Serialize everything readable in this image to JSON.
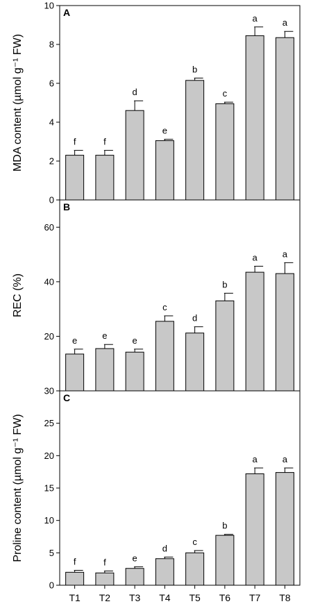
{
  "chart_data": [
    {
      "type": "bar",
      "panel_label": "A",
      "ylabel": "MDA content (µmol g⁻¹ FW)",
      "ylim": [
        0,
        10
      ],
      "yticks": [
        0,
        2,
        4,
        6,
        8,
        10
      ],
      "categories": [
        "T1",
        "T2",
        "T3",
        "T4",
        "T5",
        "T6",
        "T7",
        "T8"
      ],
      "values": [
        2.3,
        2.3,
        4.6,
        3.05,
        6.15,
        4.95,
        8.45,
        8.35
      ],
      "errors": [
        0.25,
        0.25,
        0.5,
        0.07,
        0.12,
        0.08,
        0.45,
        0.32
      ],
      "significance": [
        "f",
        "f",
        "d",
        "e",
        "b",
        "c",
        "a",
        "a"
      ],
      "bar_color": "#c8c8c8"
    },
    {
      "type": "bar",
      "panel_label": "B",
      "ylabel": "REC (%)",
      "ylim": [
        0,
        70
      ],
      "yticks": [
        20,
        40,
        60
      ],
      "categories": [
        "T1",
        "T2",
        "T3",
        "T4",
        "T5",
        "T6",
        "T7",
        "T8"
      ],
      "values": [
        13.5,
        15.5,
        14.2,
        25.5,
        21.2,
        33,
        43.5,
        43
      ],
      "errors": [
        1.8,
        1.5,
        1.1,
        2.0,
        2.3,
        2.8,
        2.2,
        4.0
      ],
      "significance": [
        "e",
        "e",
        "e",
        "c",
        "d",
        "b",
        "a",
        "a"
      ],
      "bar_color": "#c8c8c8"
    },
    {
      "type": "bar",
      "panel_label": "C",
      "ylabel": "Proline content (µmol g⁻¹ FW)",
      "ylim": [
        0,
        30
      ],
      "yticks": [
        0,
        5,
        10,
        15,
        20,
        25,
        30
      ],
      "xlabels": [
        "T1",
        "T2",
        "T3",
        "T4",
        "T5",
        "T6",
        "T7",
        "T8"
      ],
      "categories": [
        "T1",
        "T2",
        "T3",
        "T4",
        "T5",
        "T6",
        "T7",
        "T8"
      ],
      "values": [
        2.0,
        1.9,
        2.6,
        4.1,
        5.0,
        7.7,
        17.2,
        17.4
      ],
      "errors": [
        0.3,
        0.3,
        0.25,
        0.25,
        0.35,
        0.15,
        0.9,
        0.7
      ],
      "significance": [
        "f",
        "f",
        "e",
        "d",
        "c",
        "b",
        "a",
        "a"
      ],
      "bar_color": "#c8c8c8"
    }
  ]
}
